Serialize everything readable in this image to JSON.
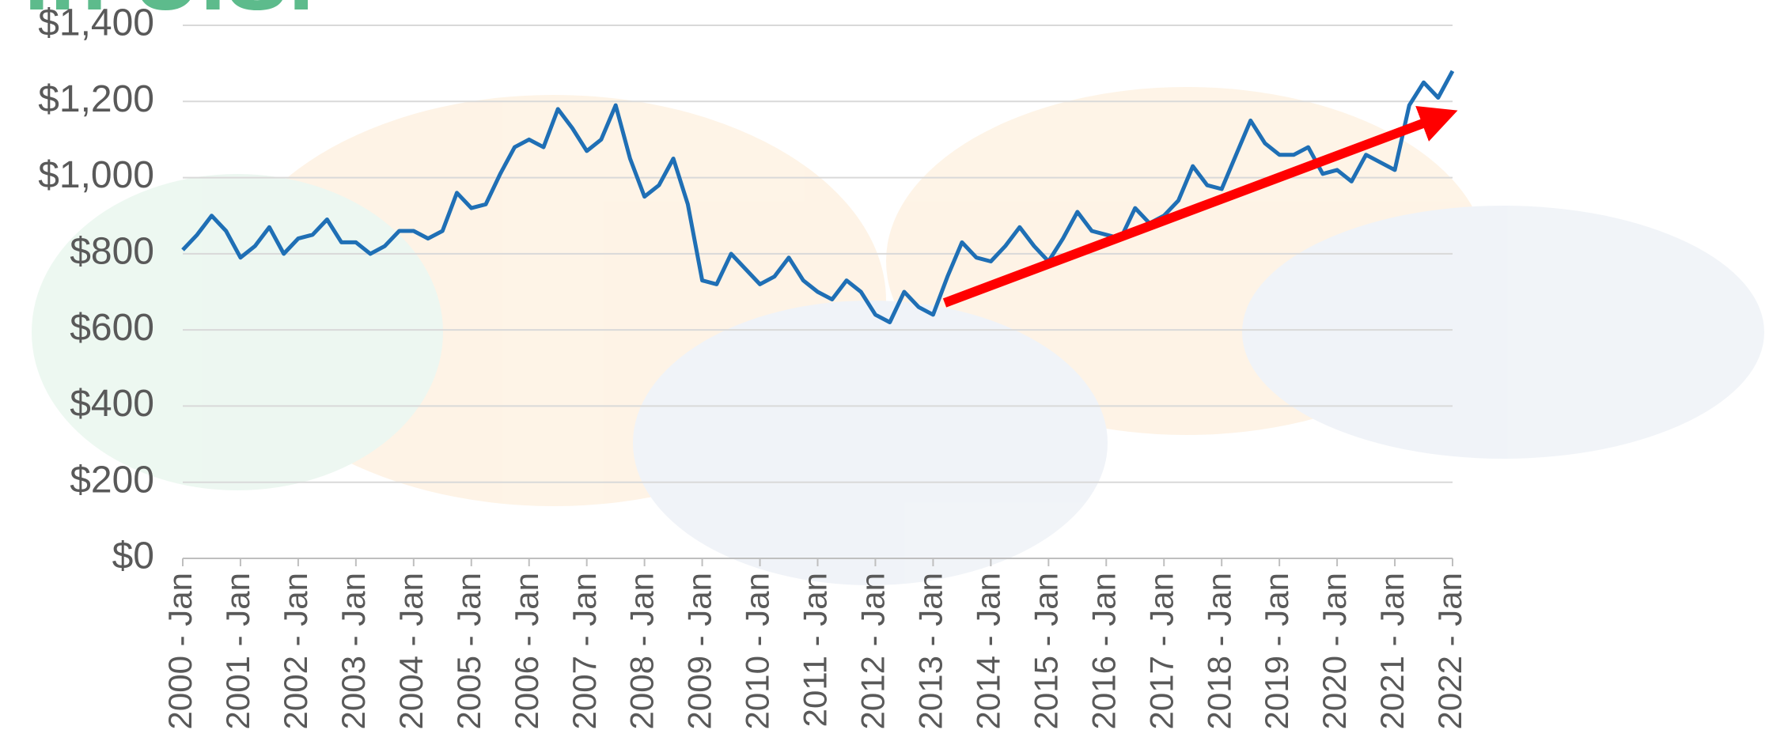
{
  "chart_data": {
    "type": "line",
    "title": "in U.S.",
    "categories": [
      "2000 - Jan",
      null,
      null,
      null,
      "2001 - Jan",
      null,
      null,
      null,
      "2002 - Jan",
      null,
      null,
      null,
      "2003 - Jan",
      null,
      null,
      null,
      "2004 - Jan",
      null,
      null,
      null,
      "2005 - Jan",
      null,
      null,
      null,
      "2006 - Jan",
      null,
      null,
      null,
      "2007 - Jan",
      null,
      null,
      null,
      "2008 - Jan",
      null,
      null,
      null,
      "2009 - Jan",
      null,
      null,
      null,
      "2010 - Jan",
      null,
      null,
      null,
      "2011 - Jan",
      null,
      null,
      null,
      "2012 - Jan",
      null,
      null,
      null,
      "2013 - Jan",
      null,
      null,
      null,
      "2014 - Jan",
      null,
      null,
      null,
      "2015 - Jan",
      null,
      null,
      null,
      "2016 - Jan",
      null,
      null,
      null,
      "2017 - Jan",
      null,
      null,
      null,
      "2018 - Jan",
      null,
      null,
      null,
      "2019 - Jan",
      null,
      null,
      null,
      "2020 - Jan",
      null,
      null,
      null,
      "2021 - Jan",
      null,
      null,
      null,
      "2022 - Jan"
    ],
    "values": [
      810,
      850,
      900,
      860,
      790,
      820,
      870,
      800,
      840,
      850,
      890,
      830,
      830,
      800,
      820,
      860,
      860,
      840,
      860,
      960,
      920,
      930,
      1010,
      1080,
      1100,
      1080,
      1180,
      1130,
      1070,
      1100,
      1190,
      1050,
      950,
      980,
      1050,
      930,
      730,
      720,
      800,
      760,
      720,
      740,
      790,
      730,
      700,
      680,
      730,
      700,
      640,
      620,
      700,
      660,
      640,
      740,
      830,
      790,
      780,
      820,
      870,
      820,
      780,
      840,
      910,
      860,
      850,
      840,
      920,
      880,
      900,
      940,
      1030,
      980,
      970,
      1060,
      1150,
      1090,
      1060,
      1060,
      1080,
      1010,
      1020,
      990,
      1060,
      1040,
      1020,
      1190,
      1250,
      1210,
      1280
    ],
    "color": "#1f6fb5",
    "ylim": [
      0,
      1400
    ],
    "yticks": [
      {
        "value": 0,
        "label": "$0"
      },
      {
        "value": 200,
        "label": "$200"
      },
      {
        "value": 400,
        "label": "$400"
      },
      {
        "value": 600,
        "label": "$600"
      },
      {
        "value": 800,
        "label": "$800"
      },
      {
        "value": 1000,
        "label": "$1,000"
      },
      {
        "value": 1200,
        "label": "$1,200"
      },
      {
        "value": 1400,
        "label": "$1,400"
      }
    ],
    "grid": true
  }
}
